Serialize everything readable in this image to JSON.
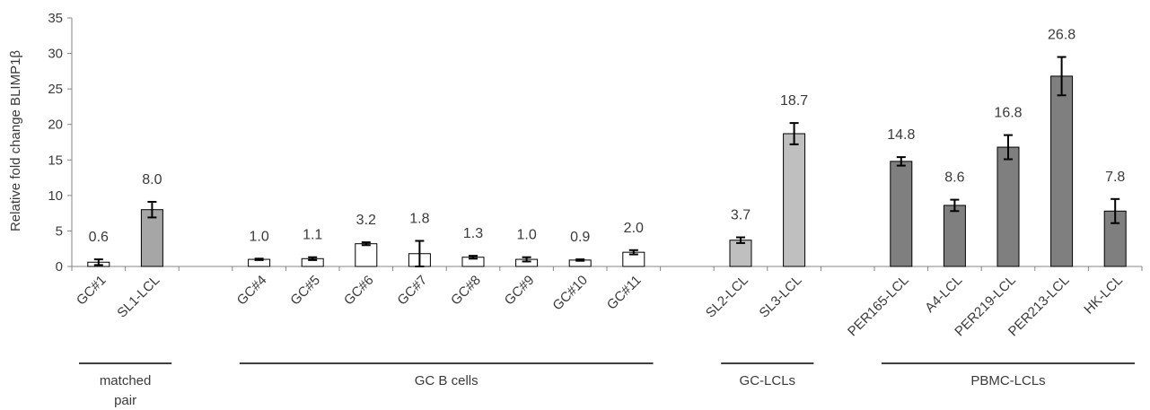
{
  "chart_data": {
    "type": "bar",
    "ylabel": "Relative fold change BLIMP1β",
    "xlabel": "",
    "ylim": [
      0,
      35
    ],
    "yticks": [
      0,
      5,
      10,
      15,
      20,
      25,
      30,
      35
    ],
    "grid": false,
    "categories": [
      "GC#1",
      "SL1-LCL",
      "",
      "GC#4",
      "GC#5",
      "GC#6",
      "GC#7",
      "GC#8",
      "GC#9",
      "GC#10",
      "GC#11",
      "",
      "SL2-LCL",
      "SL3-LCL",
      "",
      "PER165-LCL",
      "A4-LCL",
      "PER219-LCL",
      "PER213-LCL",
      "HK-LCL"
    ],
    "values": [
      0.6,
      8.0,
      null,
      1.0,
      1.1,
      3.2,
      1.8,
      1.3,
      1.0,
      0.9,
      2.0,
      null,
      3.7,
      18.7,
      null,
      14.8,
      8.6,
      16.8,
      26.8,
      7.8
    ],
    "errors": [
      0.4,
      1.1,
      null,
      0.1,
      0.2,
      0.2,
      1.8,
      0.2,
      0.3,
      0.1,
      0.3,
      null,
      0.4,
      1.5,
      null,
      0.6,
      0.8,
      1.7,
      2.7,
      1.7
    ],
    "value_labels": [
      "0.6",
      "8.0",
      "",
      "1.0",
      "1.1",
      "3.2",
      "1.8",
      "1.3",
      "1.0",
      "0.9",
      "2.0",
      "",
      "3.7",
      "18.7",
      "",
      "14.8",
      "8.6",
      "16.8",
      "26.8",
      "7.8"
    ],
    "bar_colors": [
      "#ffffff",
      "#a6a6a6",
      "",
      "#ffffff",
      "#ffffff",
      "#ffffff",
      "#ffffff",
      "#ffffff",
      "#ffffff",
      "#ffffff",
      "#ffffff",
      "",
      "#bfbfbf",
      "#bfbfbf",
      "",
      "#7f7f7f",
      "#7f7f7f",
      "#7f7f7f",
      "#7f7f7f",
      "#7f7f7f"
    ],
    "groups": [
      {
        "label_lines": [
          "matched",
          "pair"
        ],
        "from": 0,
        "to": 1
      },
      {
        "label_lines": [
          "GC B cells"
        ],
        "from": 3,
        "to": 10
      },
      {
        "label_lines": [
          "GC-LCLs"
        ],
        "from": 12,
        "to": 13
      },
      {
        "label_lines": [
          "PBMC-LCLs"
        ],
        "from": 15,
        "to": 19
      }
    ]
  }
}
